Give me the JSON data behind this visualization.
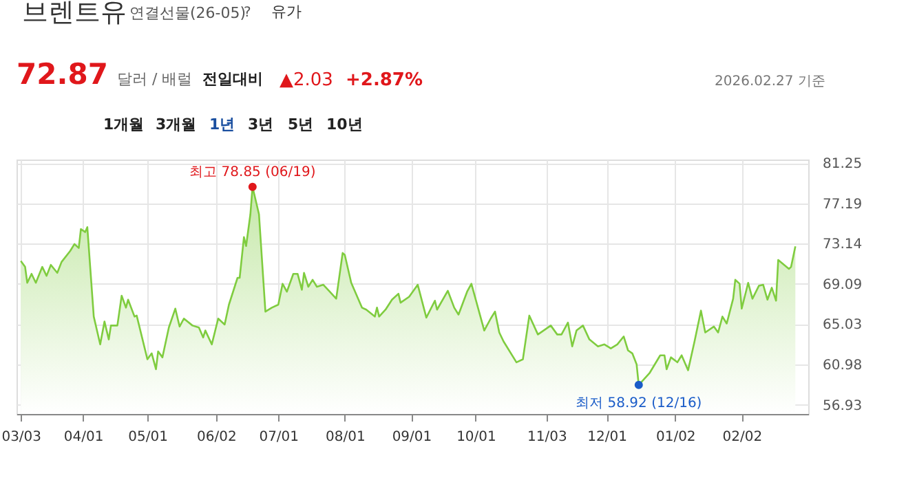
{
  "chart_data": {
    "type": "area",
    "title": "브렌트유",
    "subtitle": "연결선물(26-05)",
    "annotations": [
      "?",
      "유가",
      "72.87",
      "달러 / 배럴",
      "전일대비",
      "▲2.03",
      "+2.87%",
      "2026.02.27 기준",
      "1개월",
      "3개월",
      "1년",
      "3년",
      "5년",
      "10년",
      {
        "text": "최고 78.85 (06/19)",
        "x": "2025-06-19",
        "y": 78.85
      },
      {
        "text": "최저 58.92 (12/16)",
        "x": "2025-12-16",
        "y": 58.92
      }
    ],
    "x": [
      "2025-03-03",
      "2025-03-05",
      "2025-03-06",
      "2025-03-08",
      "2025-03-10",
      "2025-03-13",
      "2025-03-15",
      "2025-03-17",
      "2025-03-20",
      "2025-03-22",
      "2025-03-26",
      "2025-03-28",
      "2025-03-30",
      "2025-03-31",
      "2025-04-02",
      "2025-04-03",
      "2025-04-06",
      "2025-04-09",
      "2025-04-11",
      "2025-04-13",
      "2025-04-14",
      "2025-04-17",
      "2025-04-19",
      "2025-04-21",
      "2025-04-22",
      "2025-04-25",
      "2025-04-26",
      "2025-05-01",
      "2025-05-03",
      "2025-05-05",
      "2025-05-06",
      "2025-05-08",
      "2025-05-11",
      "2025-05-14",
      "2025-05-16",
      "2025-05-18",
      "2025-05-22",
      "2025-05-25",
      "2025-05-27",
      "2025-05-28",
      "2025-05-31",
      "2025-06-03",
      "2025-06-06",
      "2025-06-08",
      "2025-06-12",
      "2025-06-13",
      "2025-06-15",
      "2025-06-16",
      "2025-06-18",
      "2025-06-19",
      "2025-06-22",
      "2025-06-25",
      "2025-06-28",
      "2025-07-01",
      "2025-07-03",
      "2025-07-05",
      "2025-07-08",
      "2025-07-10",
      "2025-07-12",
      "2025-07-13",
      "2025-07-15",
      "2025-07-17",
      "2025-07-19",
      "2025-07-22",
      "2025-07-25",
      "2025-07-28",
      "2025-07-31",
      "2025-08-01",
      "2025-08-04",
      "2025-08-09",
      "2025-08-11",
      "2025-08-15",
      "2025-08-16",
      "2025-08-17",
      "2025-08-20",
      "2025-08-23",
      "2025-08-26",
      "2025-08-27",
      "2025-08-31",
      "2025-09-04",
      "2025-09-08",
      "2025-09-12",
      "2025-09-13",
      "2025-09-18",
      "2025-09-21",
      "2025-09-23",
      "2025-09-27",
      "2025-09-29",
      "2025-10-05",
      "2025-10-08",
      "2025-10-10",
      "2025-10-12",
      "2025-10-14",
      "2025-10-20",
      "2025-10-23",
      "2025-10-26",
      "2025-10-30",
      "2025-11-05",
      "2025-11-08",
      "2025-11-10",
      "2025-11-13",
      "2025-11-15",
      "2025-11-17",
      "2025-11-20",
      "2025-11-23",
      "2025-11-27",
      "2025-11-30",
      "2025-12-03",
      "2025-12-06",
      "2025-12-09",
      "2025-12-11",
      "2025-12-13",
      "2025-12-15",
      "2025-12-16",
      "2025-12-21",
      "2025-12-26",
      "2025-12-28",
      "2025-12-29",
      "2025-12-31",
      "2026-01-03",
      "2026-01-05",
      "2026-01-08",
      "2026-01-11",
      "2026-01-14",
      "2026-01-16",
      "2026-01-20",
      "2026-01-22",
      "2026-01-24",
      "2026-01-26",
      "2026-01-29",
      "2026-01-30",
      "2026-02-01",
      "2026-02-02",
      "2026-02-05",
      "2026-02-07",
      "2026-02-10",
      "2026-02-12",
      "2026-02-14",
      "2026-02-16",
      "2026-02-18",
      "2026-02-19",
      "2026-02-24",
      "2026-02-25",
      "2026-02-27"
    ],
    "series": [
      {
        "color": "#7fcc3f",
        "values": [
          71.4,
          70.8,
          69.2,
          70.1,
          69.2,
          70.8,
          69.9,
          71.0,
          70.2,
          71.3,
          72.4,
          73.1,
          72.7,
          74.6,
          74.3,
          74.8,
          65.8,
          63.0,
          65.3,
          63.5,
          64.9,
          64.9,
          67.9,
          66.7,
          67.5,
          65.8,
          65.9,
          61.5,
          62.1,
          60.5,
          62.3,
          61.7,
          64.7,
          66.6,
          64.8,
          65.6,
          64.9,
          64.7,
          63.7,
          64.4,
          63.0,
          65.6,
          65.0,
          67.0,
          69.7,
          69.7,
          73.8,
          72.9,
          76.1,
          78.85,
          76.1,
          66.3,
          66.7,
          67.0,
          69.1,
          68.3,
          70.1,
          70.1,
          68.5,
          70.2,
          68.8,
          69.5,
          68.8,
          69.0,
          68.3,
          67.6,
          72.2,
          72.0,
          69.2,
          66.7,
          66.5,
          65.8,
          66.7,
          65.8,
          66.5,
          67.5,
          68.1,
          67.2,
          67.8,
          69.0,
          65.7,
          67.4,
          66.5,
          68.4,
          66.7,
          66.0,
          68.3,
          69.1,
          64.4,
          65.6,
          66.3,
          64.2,
          63.3,
          61.2,
          61.5,
          65.9,
          64.0,
          64.9,
          64.0,
          64.0,
          65.2,
          62.8,
          64.4,
          64.9,
          63.5,
          62.8,
          63.0,
          62.6,
          63.0,
          63.8,
          62.4,
          62.1,
          61.0,
          58.92,
          60.1,
          61.9,
          61.9,
          60.5,
          61.7,
          61.2,
          61.9,
          60.4,
          63.3,
          66.4,
          64.2,
          64.8,
          64.2,
          65.8,
          65.1,
          67.6,
          69.5,
          69.1,
          66.6,
          69.2,
          67.6,
          68.9,
          69.0,
          67.5,
          68.7,
          67.4,
          71.5,
          70.6,
          70.8,
          72.87
        ]
      }
    ],
    "xlim": [
      "2025-03-01",
      "2026-03-05"
    ],
    "xticks": [
      {
        "value": "2025-03-03",
        "label": "03/03"
      },
      {
        "value": "2025-04-01",
        "label": "04/01"
      },
      {
        "value": "2025-05-01",
        "label": "05/01"
      },
      {
        "value": "2025-06-02",
        "label": "06/02"
      },
      {
        "value": "2025-07-01",
        "label": "07/01"
      },
      {
        "value": "2025-08-01",
        "label": "08/01"
      },
      {
        "value": "2025-09-01",
        "label": "09/01"
      },
      {
        "value": "2025-10-01",
        "label": "10/01"
      },
      {
        "value": "2025-11-03",
        "label": "11/03"
      },
      {
        "value": "2025-12-01",
        "label": "12/01"
      },
      {
        "value": "2026-01-02",
        "label": "01/02"
      },
      {
        "value": "2026-02-02",
        "label": "02/02"
      }
    ],
    "ylim": [
      56.0,
      81.6
    ],
    "yticks": [
      56.93,
      60.98,
      65.03,
      69.09,
      73.14,
      77.19,
      81.25
    ],
    "grid": true,
    "marker": "none",
    "line_style": "solid"
  }
}
